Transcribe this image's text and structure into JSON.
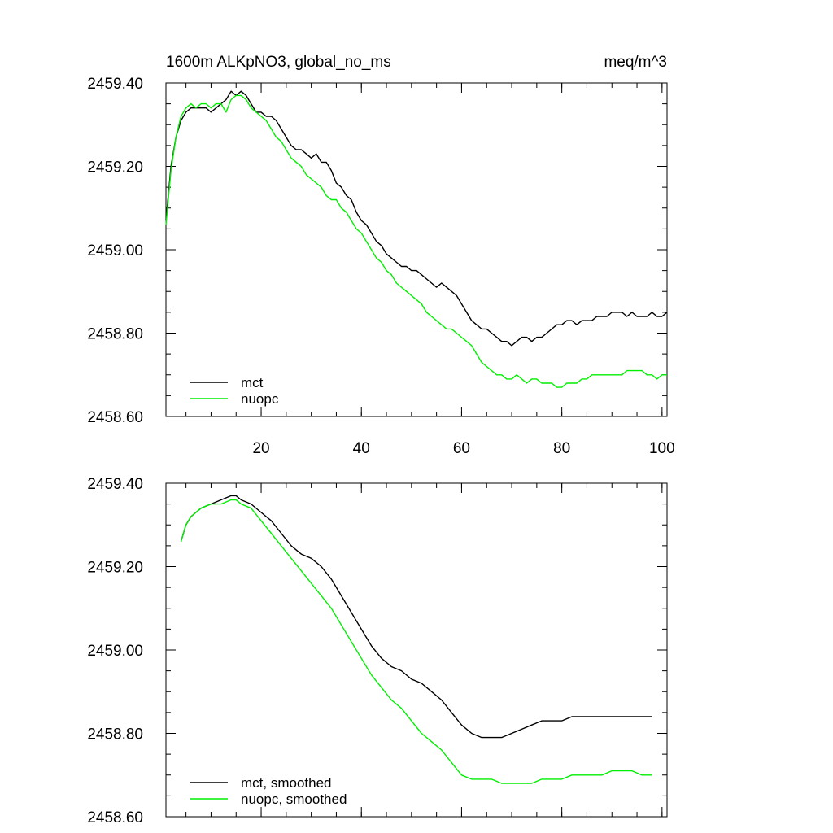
{
  "header": {
    "title_left": "1600m ALKpNO3, global_no_ms",
    "title_right": "meq/m^3"
  },
  "chart_data": [
    {
      "type": "line",
      "xlim": [
        1,
        101
      ],
      "ylim": [
        2458.6,
        2459.4
      ],
      "xticks": [
        20,
        40,
        60,
        80,
        100
      ],
      "xtick_labels": [
        "20",
        "40",
        "60",
        "80",
        "100"
      ],
      "yticks": [
        2458.6,
        2458.8,
        2459.0,
        2459.2,
        2459.4
      ],
      "ytick_labels": [
        "2458.60",
        "2458.80",
        "2459.00",
        "2459.20",
        "2459.40"
      ],
      "legend_position": "bottom-left",
      "grid": false,
      "series": [
        {
          "name": "mct",
          "color": "#000000",
          "x": [
            1,
            2,
            3,
            4,
            5,
            6,
            7,
            8,
            9,
            10,
            11,
            12,
            13,
            14,
            15,
            16,
            17,
            18,
            19,
            20,
            21,
            22,
            23,
            24,
            25,
            26,
            27,
            28,
            29,
            30,
            31,
            32,
            33,
            34,
            35,
            36,
            37,
            38,
            39,
            40,
            41,
            42,
            43,
            44,
            45,
            46,
            47,
            48,
            49,
            50,
            51,
            52,
            53,
            54,
            55,
            56,
            57,
            58,
            59,
            60,
            61,
            62,
            63,
            64,
            65,
            66,
            67,
            68,
            69,
            70,
            71,
            72,
            73,
            74,
            75,
            76,
            77,
            78,
            79,
            80,
            81,
            82,
            83,
            84,
            85,
            86,
            87,
            88,
            89,
            90,
            91,
            92,
            93,
            94,
            95,
            96,
            97,
            98,
            99,
            100,
            101
          ],
          "y": [
            2459.07,
            2459.2,
            2459.27,
            2459.31,
            2459.33,
            2459.34,
            2459.34,
            2459.34,
            2459.34,
            2459.33,
            2459.34,
            2459.35,
            2459.36,
            2459.38,
            2459.37,
            2459.38,
            2459.37,
            2459.35,
            2459.33,
            2459.33,
            2459.32,
            2459.32,
            2459.31,
            2459.29,
            2459.27,
            2459.25,
            2459.24,
            2459.24,
            2459.23,
            2459.22,
            2459.23,
            2459.21,
            2459.21,
            2459.19,
            2459.16,
            2459.15,
            2459.13,
            2459.12,
            2459.09,
            2459.07,
            2459.06,
            2459.04,
            2459.02,
            2459.01,
            2458.99,
            2458.98,
            2458.97,
            2458.96,
            2458.96,
            2458.95,
            2458.95,
            2458.94,
            2458.93,
            2458.92,
            2458.91,
            2458.92,
            2458.91,
            2458.9,
            2458.89,
            2458.87,
            2458.85,
            2458.83,
            2458.82,
            2458.81,
            2458.81,
            2458.8,
            2458.79,
            2458.78,
            2458.78,
            2458.77,
            2458.78,
            2458.79,
            2458.79,
            2458.78,
            2458.79,
            2458.79,
            2458.8,
            2458.81,
            2458.82,
            2458.82,
            2458.83,
            2458.83,
            2458.82,
            2458.83,
            2458.83,
            2458.83,
            2458.84,
            2458.84,
            2458.84,
            2458.85,
            2458.85,
            2458.85,
            2458.84,
            2458.85,
            2458.84,
            2458.84,
            2458.84,
            2458.85,
            2458.84,
            2458.84,
            2458.85
          ]
        },
        {
          "name": "nuopc",
          "color": "#00ee00",
          "x": [
            1,
            2,
            3,
            4,
            5,
            6,
            7,
            8,
            9,
            10,
            11,
            12,
            13,
            14,
            15,
            16,
            17,
            18,
            19,
            20,
            21,
            22,
            23,
            24,
            25,
            26,
            27,
            28,
            29,
            30,
            31,
            32,
            33,
            34,
            35,
            36,
            37,
            38,
            39,
            40,
            41,
            42,
            43,
            44,
            45,
            46,
            47,
            48,
            49,
            50,
            51,
            52,
            53,
            54,
            55,
            56,
            57,
            58,
            59,
            60,
            61,
            62,
            63,
            64,
            65,
            66,
            67,
            68,
            69,
            70,
            71,
            72,
            73,
            74,
            75,
            76,
            77,
            78,
            79,
            80,
            81,
            82,
            83,
            84,
            85,
            86,
            87,
            88,
            89,
            90,
            91,
            92,
            93,
            94,
            95,
            96,
            97,
            98,
            99,
            100,
            101
          ],
          "y": [
            2459.06,
            2459.19,
            2459.27,
            2459.32,
            2459.34,
            2459.35,
            2459.34,
            2459.35,
            2459.35,
            2459.34,
            2459.35,
            2459.35,
            2459.33,
            2459.36,
            2459.37,
            2459.37,
            2459.36,
            2459.34,
            2459.33,
            2459.32,
            2459.31,
            2459.29,
            2459.27,
            2459.26,
            2459.24,
            2459.22,
            2459.21,
            2459.2,
            2459.18,
            2459.17,
            2459.16,
            2459.15,
            2459.13,
            2459.12,
            2459.12,
            2459.1,
            2459.09,
            2459.07,
            2459.05,
            2459.04,
            2459.02,
            2459.0,
            2458.98,
            2458.97,
            2458.95,
            2458.94,
            2458.92,
            2458.91,
            2458.9,
            2458.89,
            2458.88,
            2458.87,
            2458.85,
            2458.84,
            2458.83,
            2458.82,
            2458.81,
            2458.81,
            2458.8,
            2458.79,
            2458.78,
            2458.77,
            2458.75,
            2458.73,
            2458.72,
            2458.71,
            2458.7,
            2458.7,
            2458.69,
            2458.69,
            2458.7,
            2458.69,
            2458.68,
            2458.69,
            2458.69,
            2458.68,
            2458.68,
            2458.68,
            2458.67,
            2458.67,
            2458.68,
            2458.68,
            2458.68,
            2458.69,
            2458.69,
            2458.7,
            2458.7,
            2458.7,
            2458.7,
            2458.7,
            2458.7,
            2458.7,
            2458.71,
            2458.71,
            2458.71,
            2458.71,
            2458.7,
            2458.7,
            2458.69,
            2458.7,
            2458.7
          ]
        }
      ]
    },
    {
      "type": "line",
      "xlim": [
        1,
        101
      ],
      "ylim": [
        2458.6,
        2459.4
      ],
      "xticks": [
        20,
        40,
        60,
        80,
        100
      ],
      "yticks": [
        2458.6,
        2458.8,
        2459.0,
        2459.2,
        2459.4
      ],
      "ytick_labels": [
        "2458.60",
        "2458.80",
        "2459.00",
        "2459.20",
        "2459.40"
      ],
      "legend_position": "bottom-left",
      "grid": false,
      "series": [
        {
          "name": "mct, smoothed",
          "color": "#000000",
          "x": [
            4,
            5,
            6,
            8,
            10,
            12,
            14,
            15,
            16,
            18,
            20,
            22,
            24,
            26,
            28,
            30,
            32,
            34,
            36,
            38,
            40,
            42,
            44,
            46,
            48,
            50,
            52,
            54,
            56,
            58,
            60,
            62,
            64,
            66,
            68,
            70,
            72,
            74,
            76,
            78,
            80,
            82,
            84,
            86,
            88,
            90,
            92,
            94,
            96,
            97,
            98
          ],
          "y": [
            2459.26,
            2459.3,
            2459.32,
            2459.34,
            2459.35,
            2459.36,
            2459.37,
            2459.37,
            2459.36,
            2459.35,
            2459.33,
            2459.31,
            2459.28,
            2459.25,
            2459.23,
            2459.22,
            2459.2,
            2459.17,
            2459.13,
            2459.09,
            2459.05,
            2459.01,
            2458.98,
            2458.96,
            2458.95,
            2458.93,
            2458.92,
            2458.9,
            2458.88,
            2458.85,
            2458.82,
            2458.8,
            2458.79,
            2458.79,
            2458.79,
            2458.8,
            2458.81,
            2458.82,
            2458.83,
            2458.83,
            2458.83,
            2458.84,
            2458.84,
            2458.84,
            2458.84,
            2458.84,
            2458.84,
            2458.84,
            2458.84,
            2458.84,
            2458.84
          ]
        },
        {
          "name": "nuopc, smoothed",
          "color": "#00ee00",
          "x": [
            4,
            5,
            6,
            8,
            10,
            12,
            14,
            15,
            16,
            18,
            20,
            22,
            24,
            26,
            28,
            30,
            32,
            34,
            36,
            38,
            40,
            42,
            44,
            46,
            48,
            50,
            52,
            54,
            56,
            58,
            60,
            62,
            64,
            66,
            68,
            70,
            72,
            74,
            76,
            78,
            80,
            82,
            84,
            86,
            88,
            90,
            92,
            94,
            96,
            97,
            98
          ],
          "y": [
            2459.26,
            2459.3,
            2459.32,
            2459.34,
            2459.35,
            2459.35,
            2459.36,
            2459.36,
            2459.35,
            2459.34,
            2459.31,
            2459.28,
            2459.25,
            2459.22,
            2459.19,
            2459.16,
            2459.13,
            2459.1,
            2459.06,
            2459.02,
            2458.98,
            2458.94,
            2458.91,
            2458.88,
            2458.86,
            2458.83,
            2458.8,
            2458.78,
            2458.76,
            2458.73,
            2458.7,
            2458.69,
            2458.69,
            2458.69,
            2458.68,
            2458.68,
            2458.68,
            2458.68,
            2458.69,
            2458.69,
            2458.69,
            2458.7,
            2458.7,
            2458.7,
            2458.7,
            2458.71,
            2458.71,
            2458.71,
            2458.7,
            2458.7,
            2458.7
          ]
        }
      ]
    }
  ]
}
